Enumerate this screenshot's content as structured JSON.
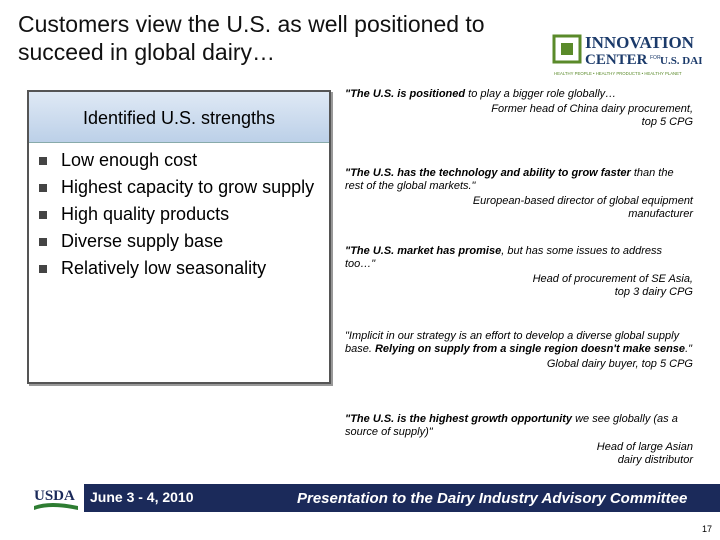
{
  "title": [
    "Customers view the U.S. as well positioned to",
    "succeed in global dairy…"
  ],
  "logo": {
    "name": [
      "INNOVATION",
      "CENTER",
      "FOR",
      "U.S. DAIRY."
    ],
    "tagline": "HEALTHY PEOPLE • HEALTHY PRODUCTS • HEALTHY PLANET"
  },
  "strengths": {
    "header": "Identified U.S. strengths",
    "items": [
      "Low enough cost",
      "Highest capacity to grow supply",
      "High quality products",
      "Diverse supply base",
      "Relatively low seasonality"
    ]
  },
  "quotes": [
    {
      "parts": [
        {
          "text": "\"The U.S. is positioned",
          "bold": true
        },
        {
          "text": " to play a bigger role globally…",
          "bold": false
        }
      ],
      "attribution": [
        "Former head of China dairy procurement,",
        "top 5 CPG"
      ]
    },
    {
      "parts": [
        {
          "text": "\"The U.S. has the technology and ability to grow faster",
          "bold": true
        },
        {
          "text": " than the rest of the global markets.\"",
          "bold": false
        }
      ],
      "attribution": [
        "European-based director of global equipment",
        "manufacturer"
      ]
    },
    {
      "parts": [
        {
          "text": "\"The U.S. market has promise",
          "bold": true
        },
        {
          "text": ", but has some issues to address too…\"",
          "bold": false
        }
      ],
      "attribution": [
        "Head of procurement of SE Asia,",
        "top 3 dairy CPG"
      ]
    },
    {
      "parts": [
        {
          "text": "\"Implicit in our strategy is an effort to develop a diverse global supply base.  ",
          "bold": false
        },
        {
          "text": "Relying on supply from a single region doesn't make sense",
          "bold": true
        },
        {
          "text": ".\"",
          "bold": false
        }
      ],
      "attribution": [
        "Global dairy buyer, top 5 CPG"
      ]
    },
    {
      "parts": [
        {
          "text": "\"The U.S. is the highest growth opportunity",
          "bold": true
        },
        {
          "text": " we see globally (as a source of supply)\"",
          "bold": false
        }
      ],
      "attribution": [
        "Head of large Asian",
        "dairy distributor"
      ]
    }
  ],
  "footer": {
    "agency": "USDA",
    "date": "June 3 - 4, 2010",
    "event": "Presentation to the Dairy Industry Advisory Committee",
    "page": "17"
  }
}
